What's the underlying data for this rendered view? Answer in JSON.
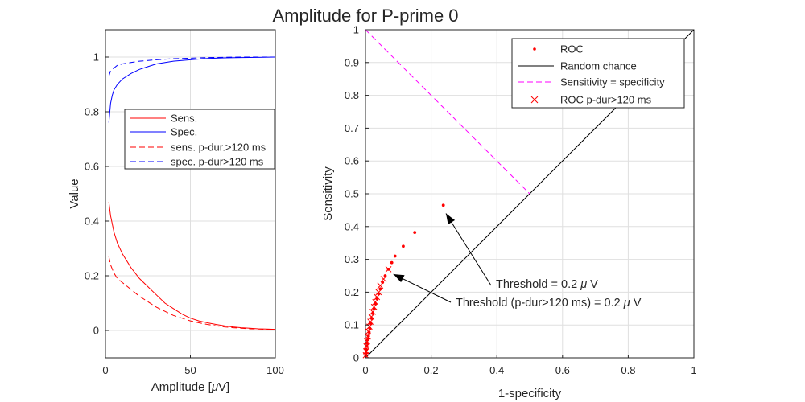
{
  "title": "Amplitude for P-prime 0",
  "colors": {
    "red": "#ff0000",
    "blue": "#0000ff",
    "magenta": "#ff00ff",
    "black": "#000000"
  },
  "chart_data": [
    {
      "type": "line",
      "xlabel_pre": "Amplitude [",
      "xlabel_mu": "μ",
      "xlabel_post": "V]",
      "ylabel": "Value",
      "xlim": [
        0,
        100
      ],
      "ylim": [
        -0.1,
        1.1
      ],
      "xticks": [
        0,
        50,
        100
      ],
      "yticks": [
        0,
        0.2,
        0.4,
        0.6,
        0.8,
        1
      ],
      "xtick_labels": [
        "0",
        "50",
        "100"
      ],
      "ytick_labels": [
        "0",
        "0.2",
        "0.4",
        "0.6",
        "0.8",
        "1"
      ],
      "legend_position": "center-right",
      "series": [
        {
          "name": "Sens.",
          "color": "#ff0000",
          "dash": "solid",
          "x": [
            2,
            3,
            5,
            7,
            10,
            15,
            20,
            25,
            30,
            35,
            40,
            45,
            50,
            55,
            60,
            65,
            70,
            75,
            80,
            85,
            90,
            95,
            100
          ],
          "y": [
            0.47,
            0.42,
            0.36,
            0.32,
            0.28,
            0.23,
            0.19,
            0.16,
            0.13,
            0.1,
            0.08,
            0.06,
            0.045,
            0.035,
            0.028,
            0.022,
            0.017,
            0.013,
            0.01,
            0.008,
            0.006,
            0.005,
            0.004
          ]
        },
        {
          "name": "Spec.",
          "color": "#0000ff",
          "dash": "solid",
          "x": [
            2,
            3,
            4,
            5,
            7,
            10,
            15,
            20,
            25,
            30,
            40,
            50,
            60,
            70,
            80,
            90,
            100
          ],
          "y": [
            0.76,
            0.83,
            0.86,
            0.88,
            0.9,
            0.92,
            0.94,
            0.955,
            0.965,
            0.975,
            0.985,
            0.99,
            0.995,
            0.997,
            0.998,
            0.999,
            1.0
          ]
        },
        {
          "name": "sens. p-dur.>120 ms",
          "color": "#ff0000",
          "dash": "dashed",
          "x": [
            2,
            3,
            5,
            7,
            10,
            15,
            20,
            25,
            30,
            35,
            40,
            45,
            50,
            55,
            60,
            65,
            70,
            75,
            80,
            85,
            90,
            95,
            100
          ],
          "y": [
            0.27,
            0.24,
            0.21,
            0.19,
            0.175,
            0.15,
            0.125,
            0.105,
            0.085,
            0.07,
            0.055,
            0.045,
            0.035,
            0.028,
            0.022,
            0.017,
            0.013,
            0.01,
            0.008,
            0.006,
            0.005,
            0.004,
            0.003
          ]
        },
        {
          "name": "spec. p-dur>120 ms",
          "color": "#0000ff",
          "dash": "dashed",
          "x": [
            2,
            3,
            5,
            7,
            10,
            15,
            20,
            30,
            40,
            50,
            60,
            70,
            80,
            90,
            100
          ],
          "y": [
            0.93,
            0.95,
            0.96,
            0.97,
            0.975,
            0.98,
            0.985,
            0.99,
            0.994,
            0.996,
            0.998,
            0.999,
            1.0,
            1.0,
            1.0
          ]
        }
      ]
    },
    {
      "type": "scatter",
      "xlabel": "1-specificity",
      "ylabel": "Sensitivity",
      "xlim": [
        0,
        1
      ],
      "ylim": [
        0,
        1
      ],
      "xticks": [
        0,
        0.2,
        0.4,
        0.6,
        0.8,
        1
      ],
      "yticks": [
        0,
        0.1,
        0.2,
        0.3,
        0.4,
        0.5,
        0.6,
        0.7,
        0.8,
        0.9,
        1
      ],
      "xtick_labels": [
        "0",
        "0.2",
        "0.4",
        "0.6",
        "0.8",
        "1"
      ],
      "ytick_labels": [
        "0",
        "0.1",
        "0.2",
        "0.3",
        "0.4",
        "0.5",
        "0.6",
        "0.7",
        "0.8",
        "0.9",
        "1"
      ],
      "legend_position": "top-right",
      "series": [
        {
          "name": "ROC",
          "color": "#ff0000",
          "marker": "dot",
          "x": [
            0.237,
            0.15,
            0.115,
            0.09,
            0.08,
            0.07,
            0.06,
            0.052,
            0.045,
            0.04,
            0.035,
            0.03,
            0.026,
            0.022,
            0.019,
            0.016,
            0.013,
            0.011,
            0.009,
            0.007,
            0.005,
            0.004,
            0.003,
            0.002,
            0.001
          ],
          "y": [
            0.465,
            0.382,
            0.34,
            0.31,
            0.29,
            0.27,
            0.25,
            0.23,
            0.21,
            0.195,
            0.18,
            0.165,
            0.15,
            0.135,
            0.12,
            0.105,
            0.09,
            0.078,
            0.066,
            0.055,
            0.044,
            0.035,
            0.025,
            0.015,
            0.006
          ]
        },
        {
          "name": "Random chance",
          "color": "#000000",
          "line": "solid",
          "x": [
            0,
            1
          ],
          "y": [
            0,
            1
          ]
        },
        {
          "name": "Sensitivity = specificity",
          "color": "#ff00ff",
          "line": "dashed",
          "x": [
            0,
            0.5
          ],
          "y": [
            1,
            0.5
          ]
        },
        {
          "name": "ROC p-dur>120 ms",
          "color": "#ff0000",
          "marker": "x",
          "x": [
            0.07,
            0.055,
            0.045,
            0.04,
            0.035,
            0.03,
            0.026,
            0.022,
            0.018,
            0.015,
            0.012,
            0.009,
            0.007,
            0.005,
            0.003,
            0.002,
            0.001
          ],
          "y": [
            0.27,
            0.24,
            0.22,
            0.2,
            0.185,
            0.17,
            0.155,
            0.14,
            0.125,
            0.11,
            0.095,
            0.08,
            0.065,
            0.05,
            0.035,
            0.02,
            0.008
          ]
        }
      ],
      "annotations": [
        {
          "text_pre": "Threshold = 0.2 ",
          "mu": "μ",
          "text_post": " V",
          "arrow_to": [
            0.245,
            0.44
          ]
        },
        {
          "text_pre": "Threshold (p-dur>120 ms) = 0.2 ",
          "mu": "μ",
          "text_post": " V",
          "arrow_to": [
            0.085,
            0.255
          ]
        }
      ]
    }
  ]
}
